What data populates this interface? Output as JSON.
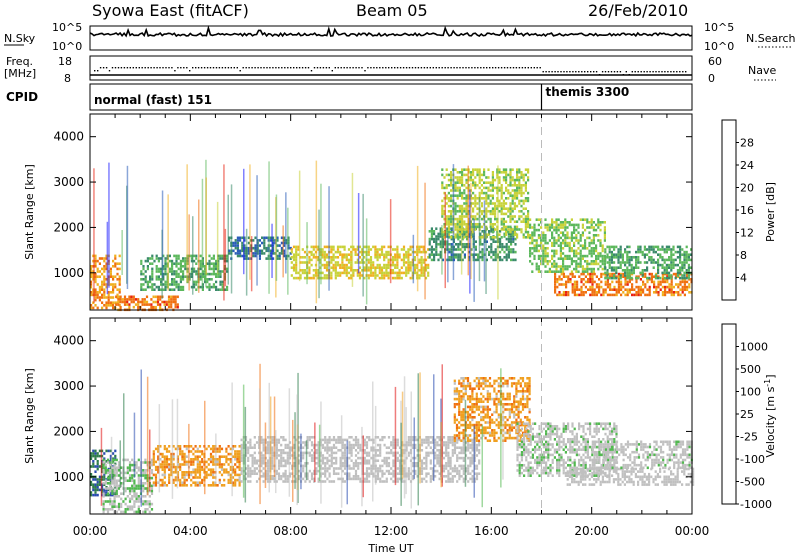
{
  "header": {
    "station": "Syowa East (fitACF)",
    "beam": "Beam 05",
    "date": "26/Feb/2010"
  },
  "noise_panel": {
    "left_label": "N.Sky",
    "right_label": "N.Search",
    "left_ticks": [
      "10^5",
      "10^0"
    ],
    "right_ticks": [
      "10^5",
      "10^0"
    ]
  },
  "freq_panel": {
    "left_label_1": "Freq.",
    "left_label_2": "[MHz]",
    "right_label": "Nave",
    "left_ticks": [
      "18",
      "8"
    ],
    "right_ticks": [
      "60",
      "0"
    ]
  },
  "cpid_panel": {
    "label": "CPID",
    "segments": [
      {
        "name": "normal (fast) 151",
        "start_hour": 0
      },
      {
        "name": "themis 3300",
        "start_hour": 18
      }
    ]
  },
  "x_axis": {
    "label": "Time UT",
    "ticks": [
      "00:00",
      "04:00",
      "08:00",
      "12:00",
      "16:00",
      "20:00",
      "00:00"
    ]
  },
  "power_panel": {
    "ylabel": "Slant Range [km]",
    "yticks": [
      "1000",
      "2000",
      "3000",
      "4000"
    ],
    "colorbar_label": "Power [dB]",
    "colorbar_ticks": [
      "4",
      "8",
      "12",
      "16",
      "20",
      "24",
      "28"
    ],
    "colors": [
      "#1a1aff",
      "#2a5cb8",
      "#3a8a6a",
      "#5cb85c",
      "#c8d23a",
      "#f0b020",
      "#f07010",
      "#e82010"
    ]
  },
  "velocity_panel": {
    "ylabel": "Slant Range [km]",
    "yticks": [
      "1000",
      "2000",
      "3000",
      "4000"
    ],
    "colorbar_label": "Velocity [m s^-1]",
    "colorbar_ticks": [
      "1000",
      "500",
      "100",
      "25",
      "-25",
      "-100",
      "-500",
      "-1000"
    ],
    "colors": [
      "#2a4cb0",
      "#2e7d4a",
      "#52b850",
      "#c0c0c0",
      "#c0c0c0",
      "#f0a020",
      "#f07010",
      "#e01010"
    ]
  },
  "chart_data": [
    {
      "type": "heatmap",
      "title": "Power [dB]",
      "xlabel": "Time UT",
      "ylabel": "Slant Range [km]",
      "xlim_hours": [
        0,
        24
      ],
      "ylim_km": [
        180,
        4500
      ],
      "clim": [
        0,
        30
      ],
      "bands": [
        {
          "start_hour": 0.0,
          "end_hour": 1.2,
          "min_km": 200,
          "max_km": 1400,
          "value": 22
        },
        {
          "start_hour": 1.0,
          "end_hour": 3.5,
          "min_km": 200,
          "max_km": 500,
          "value": 24
        },
        {
          "start_hour": 2.0,
          "end_hour": 5.5,
          "min_km": 600,
          "max_km": 1400,
          "value": 12
        },
        {
          "start_hour": 5.5,
          "end_hour": 8.0,
          "min_km": 1300,
          "max_km": 1800,
          "value": 8
        },
        {
          "start_hour": 8.0,
          "end_hour": 13.5,
          "min_km": 900,
          "max_km": 1600,
          "value": 18
        },
        {
          "start_hour": 13.5,
          "end_hour": 17.0,
          "min_km": 1300,
          "max_km": 2000,
          "value": 10
        },
        {
          "start_hour": 14.0,
          "end_hour": 17.5,
          "min_km": 1800,
          "max_km": 3300,
          "value": 16
        },
        {
          "start_hour": 17.5,
          "end_hour": 20.5,
          "min_km": 1000,
          "max_km": 2200,
          "value": 14
        },
        {
          "start_hour": 18.5,
          "end_hour": 24.0,
          "min_km": 500,
          "max_km": 1000,
          "value": 24
        },
        {
          "start_hour": 20.5,
          "end_hour": 24.0,
          "min_km": 900,
          "max_km": 1600,
          "value": 12
        }
      ]
    },
    {
      "type": "heatmap",
      "title": "Velocity [m s^-1]",
      "xlabel": "Time UT",
      "ylabel": "Slant Range [km]",
      "xlim_hours": [
        0,
        24
      ],
      "ylim_km": [
        180,
        4500
      ],
      "clim": [
        -1000,
        1000
      ],
      "bands": [
        {
          "start_hour": 0.0,
          "end_hour": 1.0,
          "min_km": 600,
          "max_km": 1600,
          "value": 700
        },
        {
          "start_hour": 0.5,
          "end_hour": 2.5,
          "min_km": 200,
          "max_km": 1400,
          "value": 200
        },
        {
          "start_hour": 2.5,
          "end_hour": 6.0,
          "min_km": 800,
          "max_km": 1700,
          "value": -400
        },
        {
          "start_hour": 6.0,
          "end_hour": 15.5,
          "min_km": 900,
          "max_km": 1900,
          "value": 0
        },
        {
          "start_hour": 14.5,
          "end_hour": 17.5,
          "min_km": 1800,
          "max_km": 3200,
          "value": -400
        },
        {
          "start_hour": 17.0,
          "end_hour": 21.0,
          "min_km": 1000,
          "max_km": 2200,
          "value": 150
        },
        {
          "start_hour": 19.0,
          "end_hour": 24.0,
          "min_km": 800,
          "max_km": 1200,
          "value": -10
        },
        {
          "start_hour": 20.0,
          "end_hour": 24.0,
          "min_km": 1200,
          "max_km": 1800,
          "value": 120
        }
      ]
    }
  ]
}
